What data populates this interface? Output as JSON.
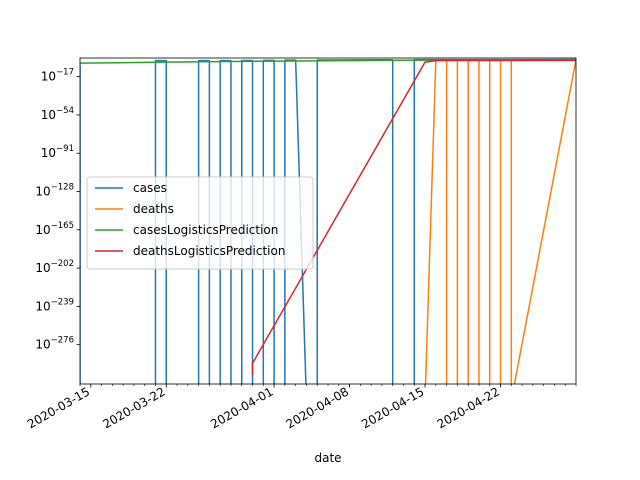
{
  "chart_data": {
    "type": "line",
    "xlabel": "date",
    "ylabel": "",
    "yscale": "log",
    "xlim": [
      "2020-03-14",
      "2020-04-29"
    ],
    "ylim_exp": [
      -314,
      1
    ],
    "x_ticks": [
      {
        "date": "2020-03-15",
        "label": "2020-03-15"
      },
      {
        "date": "2020-03-22",
        "label": "2020-03-22"
      },
      {
        "date": "2020-04-01",
        "label": "2020-04-01"
      },
      {
        "date": "2020-04-08",
        "label": "2020-04-08"
      },
      {
        "date": "2020-04-15",
        "label": "2020-04-15"
      },
      {
        "date": "2020-04-22",
        "label": "2020-04-22"
      }
    ],
    "y_ticks": [
      {
        "exp": -17,
        "label": "−17"
      },
      {
        "exp": -54,
        "label": "−54"
      },
      {
        "exp": -91,
        "label": "−91"
      },
      {
        "exp": -128,
        "label": "−128"
      },
      {
        "exp": -165,
        "label": "−165"
      },
      {
        "exp": -202,
        "label": "−202"
      },
      {
        "exp": -239,
        "label": "−239"
      },
      {
        "exp": -276,
        "label": "−276"
      }
    ],
    "grid": false,
    "legend": "center-left",
    "series": [
      {
        "name": "cases",
        "color": "#1f77b4",
        "points": [
          [
            "2020-03-14",
            -6
          ],
          [
            "2020-03-14",
            -330
          ],
          [
            "2020-03-21",
            -330
          ],
          [
            "2020-03-21",
            -1.5
          ],
          [
            "2020-03-22",
            -1.5
          ],
          [
            "2020-03-22",
            -330
          ],
          [
            "2020-03-25",
            -330
          ],
          [
            "2020-03-25",
            -1.5
          ],
          [
            "2020-03-26",
            -1.5
          ],
          [
            "2020-03-26",
            -330
          ],
          [
            "2020-03-27",
            -330
          ],
          [
            "2020-03-27",
            -1.5
          ],
          [
            "2020-03-28",
            -1.5
          ],
          [
            "2020-03-28",
            -330
          ],
          [
            "2020-03-29",
            -330
          ],
          [
            "2020-03-29",
            -1.4
          ],
          [
            "2020-03-30",
            -1.4
          ],
          [
            "2020-03-30",
            -330
          ],
          [
            "2020-03-31",
            -330
          ],
          [
            "2020-03-31",
            -1.3
          ],
          [
            "2020-04-01",
            -1.3
          ],
          [
            "2020-04-01",
            -330
          ],
          [
            "2020-04-02",
            -330
          ],
          [
            "2020-04-02",
            -1.1
          ],
          [
            "2020-04-03",
            -1.1
          ],
          [
            "2020-04-03",
            -1.0
          ],
          [
            "2020-04-04",
            -330
          ],
          [
            "2020-04-05",
            -330
          ],
          [
            "2020-04-05",
            -0.9
          ],
          [
            "2020-04-06",
            -0.9
          ],
          [
            "2020-04-12",
            -0.7
          ],
          [
            "2020-04-12",
            -330
          ],
          [
            "2020-04-14",
            -330
          ],
          [
            "2020-04-14",
            -0.6
          ],
          [
            "2020-04-29",
            -0.5
          ]
        ]
      },
      {
        "name": "deaths",
        "color": "#ff7f0e",
        "points": [
          [
            "2020-04-15",
            -330
          ],
          [
            "2020-04-16",
            -1.2
          ],
          [
            "2020-04-17",
            -1.2
          ],
          [
            "2020-04-17",
            -330
          ],
          [
            "2020-04-18",
            -330
          ],
          [
            "2020-04-18",
            -1.1
          ],
          [
            "2020-04-19",
            -1.1
          ],
          [
            "2020-04-19",
            -330
          ],
          [
            "2020-04-20",
            -330
          ],
          [
            "2020-04-20",
            -1.0
          ],
          [
            "2020-04-21",
            -1.0
          ],
          [
            "2020-04-21",
            -330
          ],
          [
            "2020-04-22",
            -330
          ],
          [
            "2020-04-22",
            -0.9
          ],
          [
            "2020-04-23",
            -0.9
          ],
          [
            "2020-04-23",
            -330
          ],
          [
            "2020-04-29",
            -0.8
          ]
        ]
      },
      {
        "name": "casesLogisticsPrediction",
        "color": "#2ca02c",
        "points": [
          [
            "2020-03-14",
            -4
          ],
          [
            "2020-03-22",
            -3
          ],
          [
            "2020-04-01",
            -2
          ],
          [
            "2020-04-08",
            -1.5
          ],
          [
            "2020-04-15",
            -1
          ],
          [
            "2020-04-29",
            -0.8
          ]
        ]
      },
      {
        "name": "deathsLogisticsPrediction",
        "color": "#d62728",
        "points": [
          [
            "2020-03-30",
            -305
          ],
          [
            "2020-03-30",
            -294
          ],
          [
            "2020-04-15",
            -3
          ],
          [
            "2020-04-16",
            -1.5
          ],
          [
            "2020-04-29",
            -1.3
          ]
        ]
      }
    ]
  }
}
